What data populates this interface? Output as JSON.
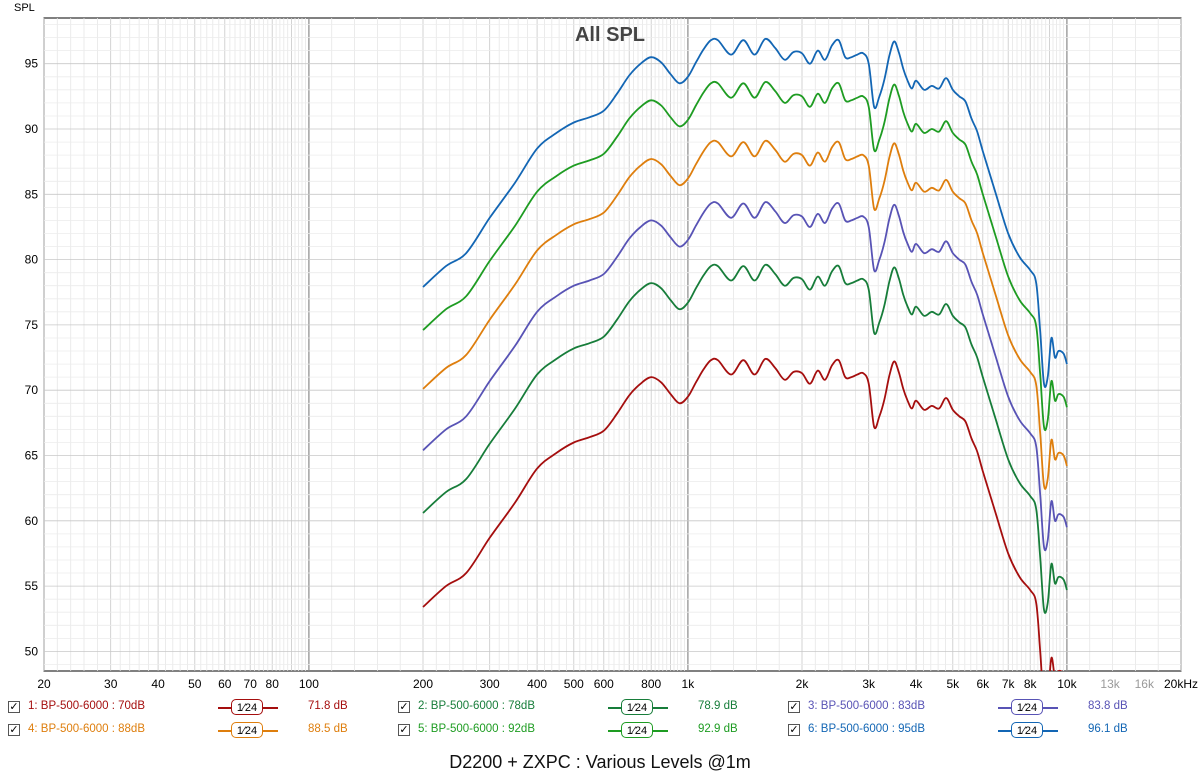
{
  "chart_data": {
    "type": "line",
    "title": "All SPL",
    "ylabel": "SPL",
    "xscale": "log",
    "xlim": [
      20,
      20000
    ],
    "ylim": [
      48.5,
      98.5
    ],
    "grid": true,
    "x_ticks": [
      {
        "v": 20,
        "label": "20"
      },
      {
        "v": 30,
        "label": "30"
      },
      {
        "v": 40,
        "label": "40"
      },
      {
        "v": 50,
        "label": "50"
      },
      {
        "v": 60,
        "label": "60"
      },
      {
        "v": 70,
        "label": "70"
      },
      {
        "v": 80,
        "label": "80"
      },
      {
        "v": 100,
        "label": "100"
      },
      {
        "v": 200,
        "label": "200"
      },
      {
        "v": 300,
        "label": "300"
      },
      {
        "v": 400,
        "label": "400"
      },
      {
        "v": 500,
        "label": "500"
      },
      {
        "v": 600,
        "label": "600"
      },
      {
        "v": 800,
        "label": "800"
      },
      {
        "v": 1000,
        "label": "1k"
      },
      {
        "v": 2000,
        "label": "2k"
      },
      {
        "v": 3000,
        "label": "3k"
      },
      {
        "v": 4000,
        "label": "4k"
      },
      {
        "v": 5000,
        "label": "5k"
      },
      {
        "v": 6000,
        "label": "6k"
      },
      {
        "v": 7000,
        "label": "7k"
      },
      {
        "v": 8000,
        "label": "8k"
      },
      {
        "v": 10000,
        "label": "10k"
      },
      {
        "v": 13000,
        "label": "13k",
        "muted": true
      },
      {
        "v": 16000,
        "label": "16k",
        "muted": true
      },
      {
        "v": 20000,
        "label": "20kHz"
      }
    ],
    "y_ticks": [
      50,
      55,
      60,
      65,
      70,
      75,
      80,
      85,
      90,
      95
    ],
    "offsets_note": "",
    "base_curve": {
      "x": [
        200,
        230,
        260,
        300,
        350,
        400,
        450,
        500,
        550,
        600,
        650,
        700,
        750,
        800,
        850,
        900,
        950,
        1000,
        1050,
        1100,
        1150,
        1200,
        1300,
        1400,
        1500,
        1600,
        1700,
        1800,
        1900,
        2000,
        2100,
        2200,
        2300,
        2400,
        2500,
        2600,
        2700,
        2800,
        2900,
        3000,
        3100,
        3200,
        3300,
        3400,
        3500,
        3600,
        3700,
        3800,
        3900,
        4000,
        4200,
        4400,
        4600,
        4800,
        5000,
        5200,
        5400,
        5600,
        5800,
        6000,
        6500,
        7000,
        7500,
        8000,
        8300,
        8500,
        8700,
        8900,
        9100,
        9300,
        9500,
        9800,
        10000
      ],
      "y": [
        53.4,
        55.0,
        56.0,
        58.7,
        61.4,
        64.0,
        65.2,
        66.0,
        66.4,
        66.9,
        68.2,
        69.6,
        70.5,
        71.0,
        70.6,
        69.7,
        69.0,
        69.5,
        70.6,
        71.6,
        72.3,
        72.3,
        71.2,
        72.3,
        71.2,
        72.4,
        71.7,
        70.8,
        71.4,
        71.3,
        70.5,
        71.5,
        70.8,
        71.9,
        72.3,
        71.0,
        71.0,
        71.2,
        71.3,
        70.5,
        67.2,
        68.0,
        69.3,
        71.1,
        72.2,
        71.4,
        70.1,
        69.2,
        68.6,
        69.2,
        68.5,
        68.8,
        68.6,
        69.4,
        68.5,
        68.0,
        67.6,
        66.3,
        65.3,
        63.8,
        60.5,
        57.5,
        55.7,
        54.7,
        53.7,
        50.0,
        46.0,
        46.5,
        49.5,
        48.0,
        48.5,
        48.3,
        47.5
      ]
    },
    "series": [
      {
        "name": "1: BP-500-6000 : 70dB",
        "color": "#a50e0e",
        "offset": 0,
        "smoothing": "1/24",
        "value": "71.8 dB"
      },
      {
        "name": "2: BP-500-6000 : 78dB",
        "color": "#177d3a",
        "offset": 7.2,
        "smoothing": "1/24",
        "value": "78.9 dB"
      },
      {
        "name": "3: BP-500-6000 : 83dB",
        "color": "#5853b5",
        "offset": 12.0,
        "smoothing": "1/24",
        "value": "83.8 dB"
      },
      {
        "name": "4: BP-500-6000 : 88dB",
        "color": "#de7e0d",
        "offset": 16.7,
        "smoothing": "1/24",
        "value": "88.5 dB"
      },
      {
        "name": "5: BP-500-6000 : 92dB",
        "color": "#1e9c22",
        "offset": 21.2,
        "smoothing": "1/24",
        "value": "92.9 dB"
      },
      {
        "name": "6: BP-500-6000 : 95dB",
        "color": "#1366b4",
        "offset": 24.5,
        "smoothing": "1/24",
        "value": "96.1 dB"
      }
    ]
  },
  "legend": {
    "check": "✓",
    "smoothing_label": "1⁄24"
  },
  "caption": "D2200 + ZXPC : Various Levels @1m"
}
